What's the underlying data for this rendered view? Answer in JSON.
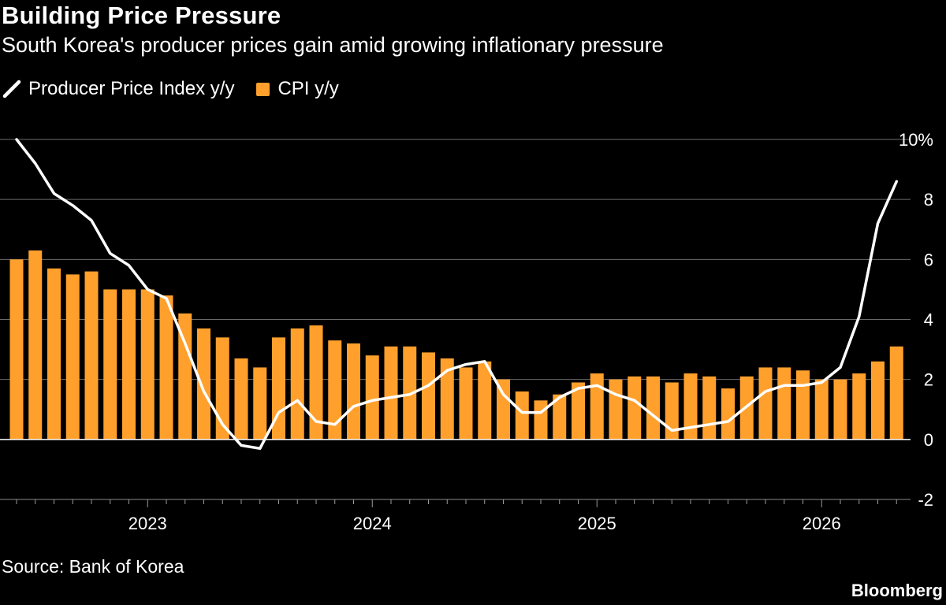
{
  "title": "Building Price Pressure",
  "subtitle": "South Korea's producer prices gain amid growing inflationary pressure",
  "legend": [
    {
      "label": "Producer Price Index y/y",
      "kind": "line",
      "color": "#ffffff"
    },
    {
      "label": "CPI y/y",
      "kind": "bar",
      "color": "#ffa02c"
    }
  ],
  "source": "Source: Bank of Korea",
  "brand": "Bloomberg",
  "chart_data": {
    "type": "bar",
    "title": "Building Price Pressure",
    "subtitle": "South Korea's producer prices gain amid growing inflationary pressure",
    "xlabel": "",
    "ylabel": "",
    "ylim": [
      -2,
      10
    ],
    "yticks": [
      {
        "value": 10,
        "label": "10%"
      },
      {
        "value": 8,
        "label": "8"
      },
      {
        "value": 6,
        "label": "6"
      },
      {
        "value": 4,
        "label": "4"
      },
      {
        "value": 2,
        "label": "2"
      },
      {
        "value": 0,
        "label": "0"
      },
      {
        "value": -2,
        "label": "-2"
      }
    ],
    "xtick_labels": [
      {
        "label": "2023",
        "month": "2023-01"
      },
      {
        "label": "2024",
        "month": "2024-01"
      },
      {
        "label": "2025",
        "month": "2025-01"
      },
      {
        "label": "2026",
        "month": "2026-01"
      }
    ],
    "grid": true,
    "legend_position": "top-left",
    "categories": [
      "2022-06",
      "2022-07",
      "2022-08",
      "2022-09",
      "2022-10",
      "2022-11",
      "2022-12",
      "2023-01",
      "2023-02",
      "2023-03",
      "2023-04",
      "2023-05",
      "2023-06",
      "2023-07",
      "2023-08",
      "2023-09",
      "2023-10",
      "2023-11",
      "2023-12",
      "2024-01",
      "2024-02",
      "2024-03",
      "2024-04",
      "2024-05",
      "2024-06",
      "2024-07",
      "2024-08",
      "2024-09",
      "2024-10",
      "2024-11",
      "2024-12",
      "2025-01",
      "2025-02",
      "2025-03",
      "2025-04",
      "2025-05",
      "2025-06",
      "2025-07",
      "2025-08",
      "2025-09",
      "2025-10",
      "2025-11",
      "2025-12",
      "2026-01",
      "2026-02",
      "2026-03",
      "2026-04",
      "2026-05"
    ],
    "series": [
      {
        "name": "CPI y/y",
        "type": "bar",
        "color": "#ffa02c",
        "values": [
          6.0,
          6.3,
          5.7,
          5.5,
          5.6,
          5.0,
          5.0,
          5.0,
          4.8,
          4.2,
          3.7,
          3.4,
          2.7,
          2.4,
          3.4,
          3.7,
          3.8,
          3.3,
          3.2,
          2.8,
          3.1,
          3.1,
          2.9,
          2.7,
          2.4,
          2.6,
          2.0,
          1.6,
          1.3,
          1.5,
          1.9,
          2.2,
          2.0,
          2.1,
          2.1,
          1.9,
          2.2,
          2.1,
          1.7,
          2.1,
          2.4,
          2.4,
          2.3,
          2.0,
          2.0,
          2.2,
          2.6,
          3.1
        ]
      },
      {
        "name": "Producer Price Index y/y",
        "type": "line",
        "color": "#ffffff",
        "values": [
          10.0,
          9.2,
          8.2,
          7.8,
          7.3,
          6.2,
          5.8,
          5.0,
          4.7,
          3.2,
          1.6,
          0.5,
          -0.2,
          -0.3,
          0.9,
          1.3,
          0.6,
          0.5,
          1.1,
          1.3,
          1.4,
          1.5,
          1.8,
          2.3,
          2.5,
          2.6,
          1.5,
          0.9,
          0.9,
          1.4,
          1.7,
          1.8,
          1.5,
          1.3,
          0.8,
          0.3,
          0.4,
          0.5,
          0.6,
          1.1,
          1.6,
          1.8,
          1.8,
          1.9,
          2.4,
          4.1,
          7.2,
          8.6
        ]
      }
    ]
  }
}
